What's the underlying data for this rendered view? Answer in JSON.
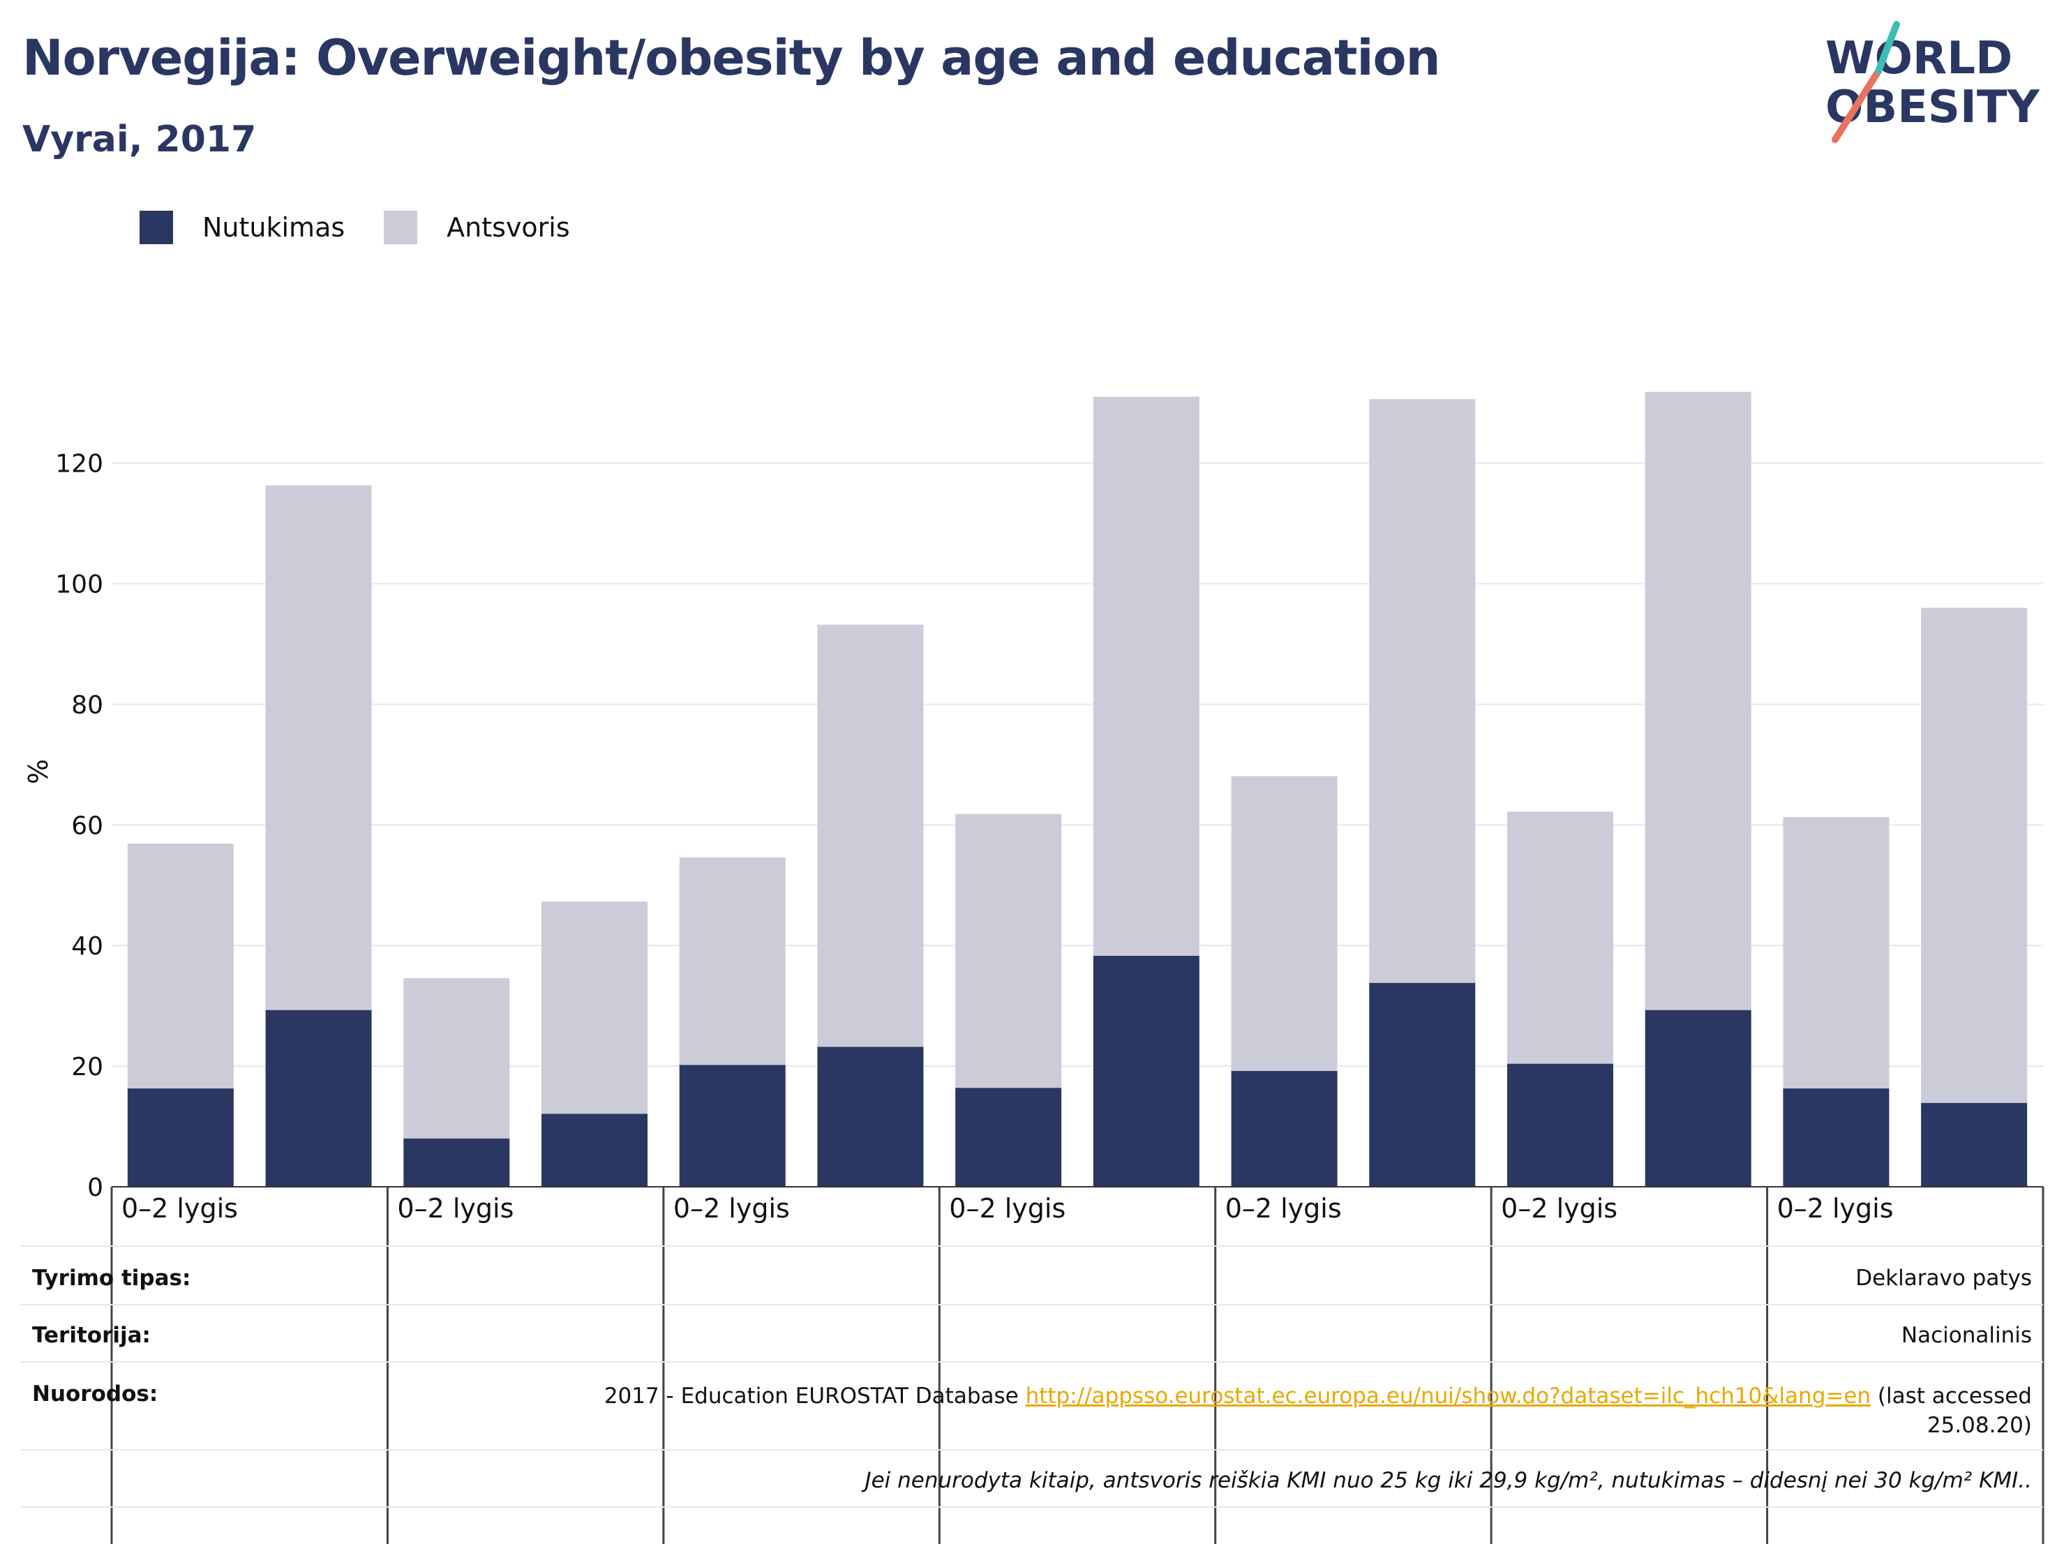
{
  "header": {
    "title": "Norvegija: Overweight/obesity by age and education",
    "subtitle": "Vyrai, 2017"
  },
  "logo": {
    "line1": "WORLD",
    "line2": "OBESITY"
  },
  "colors": {
    "obesity": "#2a3763",
    "overweight": "#cbccd8",
    "title": "#2a3763",
    "link": "#e8a800"
  },
  "chart_data": {
    "type": "bar",
    "stacked": true,
    "ylabel": "%",
    "ylim": [
      0,
      132
    ],
    "yticks": [
      0,
      20,
      40,
      60,
      80,
      100,
      120
    ],
    "grid": true,
    "legend_position": "top-left",
    "group_labels": [
      "0–2 lygis",
      "0–2 lygis",
      "0–2 lygis",
      "0–2 lygis",
      "0–2 lygis",
      "0–2 lygis",
      "0–2 lygis"
    ],
    "bars_per_group": 2,
    "series": [
      {
        "name": "Nutukimas",
        "values": [
          16.3,
          29.3,
          8.0,
          12.1,
          20.2,
          23.2,
          16.4,
          38.3,
          19.2,
          33.8,
          20.4,
          29.3,
          16.3,
          13.9
        ]
      },
      {
        "name": "Antsvoris",
        "values": [
          40.6,
          87.0,
          26.6,
          35.2,
          34.4,
          70.0,
          45.4,
          92.7,
          48.9,
          96.8,
          41.8,
          102.5,
          45.0,
          82.1
        ]
      }
    ]
  },
  "notes": {
    "survey_type_label": "Tyrimo tipas:",
    "survey_type_value": "Deklaravo patys",
    "territory_label": "Teritorija:",
    "territory_value": "Nacionalinis",
    "references_label": "Nuorodos:",
    "references_prefix": "2017 - Education EUROSTAT Database ",
    "references_link": "http://appsso.eurostat.ec.europa.eu/nui/show.do?dataset=ilc_hch10&lang=en",
    "references_suffix": " (last accessed",
    "references_date": "25.08.20)",
    "definition": "Jei nenurodyta kitaip, antsvoris reiškia KMI nuo 25 kg iki 29,9 kg/m², nutukimas – didesnį nei 30 kg/m² KMI.."
  }
}
